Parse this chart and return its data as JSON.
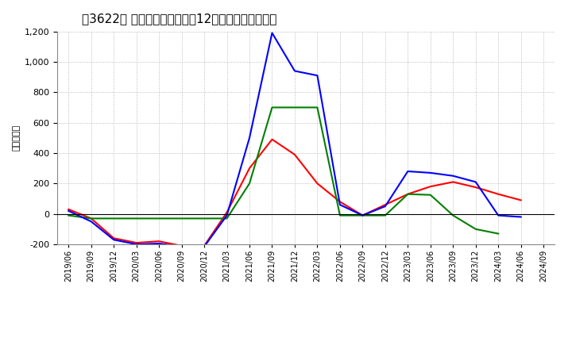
{
  "title": "　3622、 キャッシュフローの12か月移動合計の推移",
  "title_bracket": "　3622、",
  "title_full": "[3622]　キャッシュフローの12か月移動合計の推移",
  "ylabel": "（百万円）",
  "x_labels": [
    "2019/06",
    "2019/09",
    "2019/12",
    "2020/03",
    "2020/06",
    "2020/09",
    "2020/12",
    "2021/03",
    "2021/06",
    "2021/09",
    "2021/12",
    "2022/03",
    "2022/06",
    "2022/09",
    "2022/12",
    "2023/03",
    "2023/06",
    "2023/09",
    "2023/12",
    "2024/03",
    "2024/06",
    "2024/09"
  ],
  "operating_cf": [
    30,
    -30,
    -160,
    -190,
    -180,
    -210,
    -210,
    10,
    300,
    490,
    390,
    200,
    80,
    -10,
    60,
    130,
    180,
    210,
    175,
    130,
    90,
    null
  ],
  "investing_cf": [
    -10,
    -30,
    -30,
    -30,
    -30,
    -30,
    -30,
    -30,
    200,
    700,
    700,
    700,
    -10,
    -10,
    -10,
    130,
    125,
    -10,
    -100,
    -130,
    null,
    null
  ],
  "free_cf": [
    20,
    -50,
    -170,
    -200,
    -195,
    -215,
    -215,
    -10,
    500,
    1190,
    940,
    910,
    60,
    -10,
    50,
    280,
    270,
    250,
    210,
    -10,
    -20,
    null
  ],
  "operating_color": "#ff0000",
  "investing_color": "#008000",
  "free_color": "#0000ff",
  "background_color": "#ffffff",
  "grid_color": "#aaaaaa",
  "ylim": [
    -200,
    1200
  ],
  "yticks": [
    -200,
    0,
    200,
    400,
    600,
    800,
    1000,
    1200
  ]
}
